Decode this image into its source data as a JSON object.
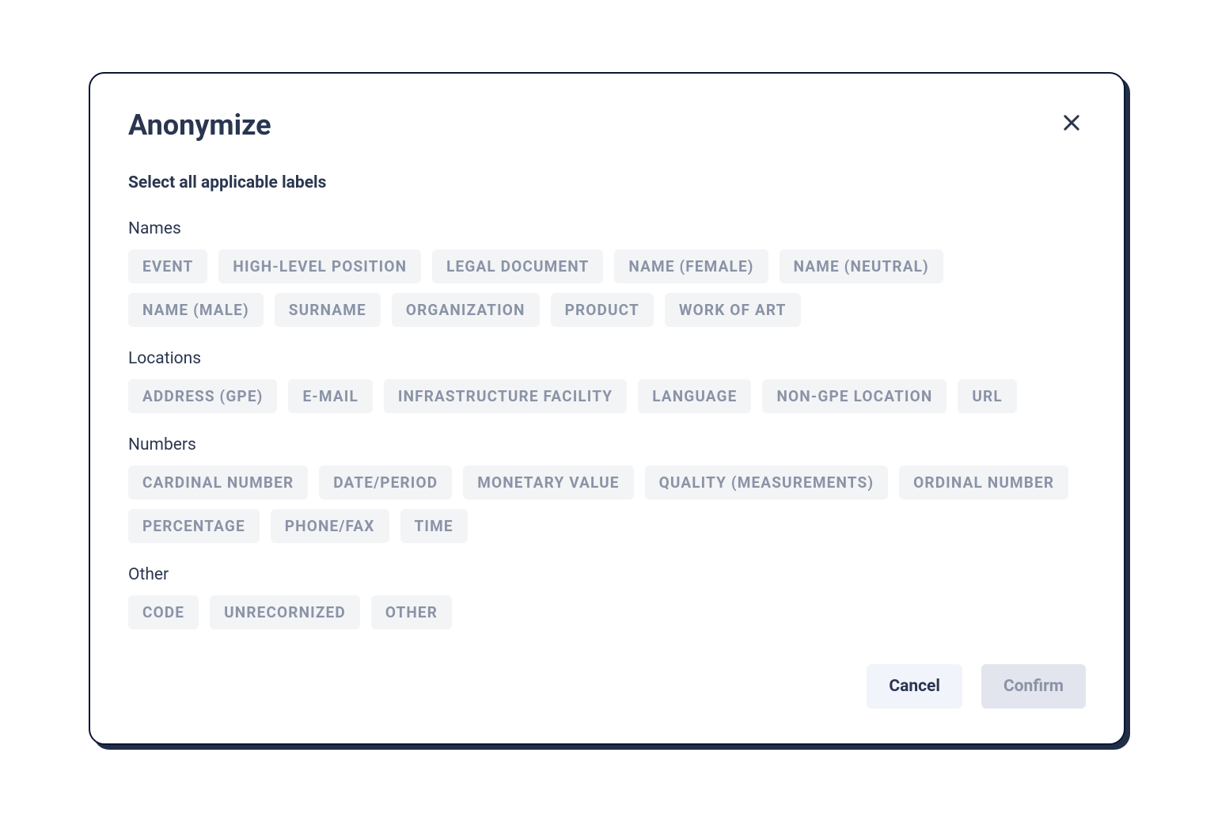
{
  "dialog": {
    "title": "Anonymize",
    "instruction": "Select all applicable labels",
    "categories": [
      {
        "title": "Names",
        "chips": [
          "EVENT",
          "HIGH-LEVEL POSITION",
          "LEGAL DOCUMENT",
          "NAME (FEMALE)",
          "NAME (NEUTRAL)",
          "NAME (MALE)",
          "SURNAME",
          "ORGANIZATION",
          "PRODUCT",
          "WORK OF ART"
        ]
      },
      {
        "title": "Locations",
        "chips": [
          "ADDRESS (GPE)",
          "E-MAIL",
          "INFRASTRUCTURE FACILITY",
          "LANGUAGE",
          "NON-GPE LOCATION",
          "URL"
        ]
      },
      {
        "title": "Numbers",
        "chips": [
          "CARDINAL NUMBER",
          "DATE/PERIOD",
          "MONETARY VALUE",
          "QUALITY (MEASUREMENTS)",
          "ORDINAL NUMBER",
          "PERCENTAGE",
          "PHONE/FAX",
          "TIME"
        ]
      },
      {
        "title": "Other",
        "chips": [
          "CODE",
          "UNRECORNIZED",
          "OTHER"
        ]
      }
    ],
    "buttons": {
      "cancel": "Cancel",
      "confirm": "Confirm"
    }
  },
  "colors": {
    "text_dark": "#2a3650",
    "text_muted": "#8a93a6",
    "chip_bg": "#f3f4f6",
    "cancel_bg": "#f2f4fb",
    "confirm_bg": "#e3e5ee",
    "border": "#0a1733",
    "background": "#ffffff"
  }
}
